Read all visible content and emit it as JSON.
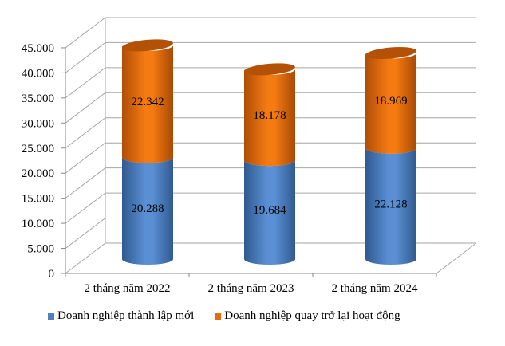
{
  "chart_data": {
    "type": "bar",
    "style": "3d-stacked-cylinder",
    "title": "",
    "xlabel": "",
    "ylabel": "",
    "categories": [
      "2 tháng năm 2022",
      "2 tháng năm 2023",
      "2 tháng năm 2024"
    ],
    "series": [
      {
        "name": "Doanh nghiệp thành lập mới",
        "color": "#4F81BD",
        "values": [
          20288,
          19684,
          22128
        ],
        "labels": [
          "20.288",
          "19.684",
          "22.128"
        ]
      },
      {
        "name": "Doanh nghiệp quay trở lại hoạt động",
        "color": "#E46C0A",
        "values": [
          22342,
          18178,
          18969
        ],
        "labels": [
          "22.342",
          "18.178",
          "18.969"
        ]
      }
    ],
    "ylim": [
      0,
      45000
    ],
    "yticks": [
      "0",
      "5.000",
      "10.000",
      "15.000",
      "20.000",
      "25.000",
      "30.000",
      "35.000",
      "40.000",
      "45.000"
    ],
    "grid": true,
    "legend_position": "bottom"
  },
  "legend": {
    "items": [
      {
        "label": "Doanh nghiệp thành lập mới",
        "color": "#4F81BD"
      },
      {
        "label": "Doanh nghiệp quay trở lại hoạt động",
        "color": "#E46C0A"
      }
    ]
  }
}
